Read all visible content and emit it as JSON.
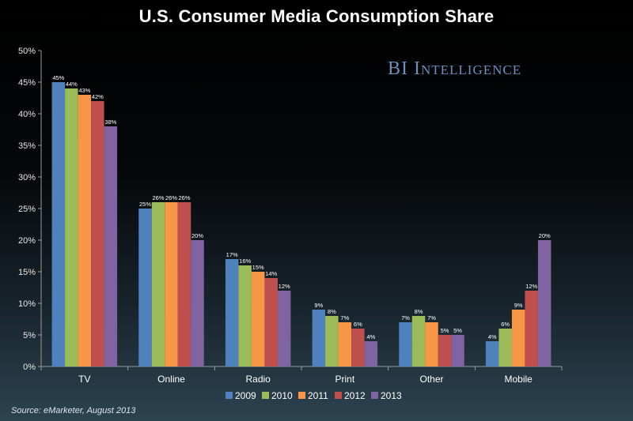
{
  "chart_data": {
    "type": "bar",
    "title": "U.S. Consumer Media Consumption Share",
    "brand": "BI Intelligence",
    "source": "Source: eMarketer, August 2013",
    "categories": [
      "TV",
      "Online",
      "Radio",
      "Print",
      "Other",
      "Mobile"
    ],
    "ylim": [
      0,
      50
    ],
    "yticks": [
      "0%",
      "5%",
      "10%",
      "15%",
      "20%",
      "25%",
      "30%",
      "35%",
      "40%",
      "45%",
      "50%"
    ],
    "legend_position": "bottom",
    "series": [
      {
        "name": "2009",
        "color": "#4f81bd",
        "values": [
          45,
          25,
          17,
          9,
          7,
          4
        ]
      },
      {
        "name": "2010",
        "color": "#9bbb59",
        "values": [
          44,
          26,
          16,
          8,
          8,
          6
        ]
      },
      {
        "name": "2011",
        "color": "#f79646",
        "values": [
          43,
          26,
          15,
          7,
          7,
          9
        ]
      },
      {
        "name": "2012",
        "color": "#c0504d",
        "values": [
          42,
          26,
          14,
          6,
          5,
          12
        ]
      },
      {
        "name": "2013",
        "color": "#8064a2",
        "values": [
          38,
          20,
          12,
          4,
          5,
          20
        ]
      }
    ]
  }
}
